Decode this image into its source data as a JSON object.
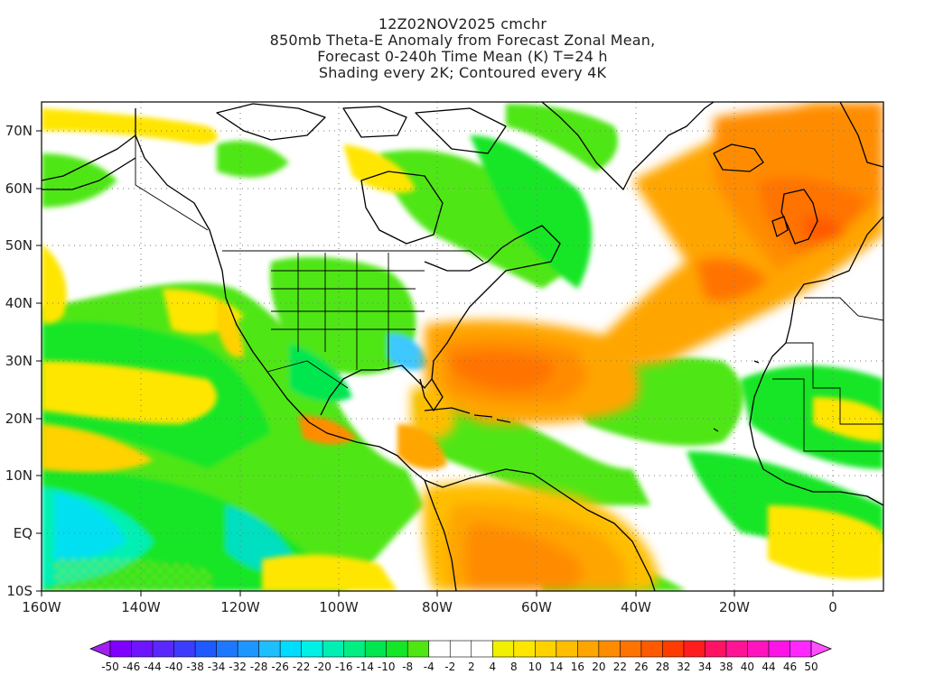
{
  "title": {
    "line1": "12Z02NOV2025 cmchr",
    "line2": "850mb Theta-E Anomaly from Forecast Zonal Mean,",
    "line3": "Forecast 0-240h Time Mean (K) T=24 h",
    "line4": "Shading every 2K; Contoured every 4K"
  },
  "map": {
    "projection": "cylindrical equidistant",
    "lon_range": [
      -160,
      10
    ],
    "lat_range": [
      -10,
      75
    ],
    "lat_ticks": [
      {
        "lat": 70,
        "label": "70N"
      },
      {
        "lat": 60,
        "label": "60N"
      },
      {
        "lat": 50,
        "label": "50N"
      },
      {
        "lat": 40,
        "label": "40N"
      },
      {
        "lat": 30,
        "label": "30N"
      },
      {
        "lat": 20,
        "label": "20N"
      },
      {
        "lat": 10,
        "label": "10N"
      },
      {
        "lat": 0,
        "label": "EQ"
      },
      {
        "lat": -10,
        "label": "10S"
      }
    ],
    "lon_ticks": [
      {
        "lon": -160,
        "label": "160W"
      },
      {
        "lon": -140,
        "label": "140W"
      },
      {
        "lon": -120,
        "label": "120W"
      },
      {
        "lon": -100,
        "label": "100W"
      },
      {
        "lon": -80,
        "label": "80W"
      },
      {
        "lon": -60,
        "label": "60W"
      },
      {
        "lon": -40,
        "label": "40W"
      },
      {
        "lon": -20,
        "label": "20W"
      },
      {
        "lon": 0,
        "label": "0"
      }
    ],
    "grid": "dotted",
    "land_outline_color": "#000000",
    "anomaly_regions": [
      {
        "name": "NE Atlantic warm plume",
        "color": "#ff8a10"
      },
      {
        "name": "Subtropical Atlantic warm core",
        "color": "#ff7a1a"
      },
      {
        "name": "South America warm",
        "color": "#ffa500"
      },
      {
        "name": "Eastern Pacific cool",
        "color": "#18d2ff"
      },
      {
        "name": "SE US cool",
        "color": "#3ec8ff"
      }
    ]
  },
  "colorbar": {
    "labels": [
      "-50",
      "-46",
      "-44",
      "-40",
      "-38",
      "-34",
      "-32",
      "-28",
      "-26",
      "-22",
      "-20",
      "-16",
      "-14",
      "-10",
      "-8",
      "-4",
      "-2",
      "2",
      "4",
      "8",
      "10",
      "14",
      "16",
      "20",
      "22",
      "26",
      "28",
      "32",
      "34",
      "38",
      "40",
      "44",
      "46",
      "50"
    ],
    "colors": [
      "#8000ff",
      "#6e14ff",
      "#5a28ff",
      "#3c3cff",
      "#1e5aff",
      "#1e78ff",
      "#1e96ff",
      "#1ebeff",
      "#00dcff",
      "#00f0e6",
      "#00f0b4",
      "#00ee82",
      "#00e650",
      "#14e628",
      "#50e614",
      "#ffffff",
      "#ffffff",
      "#ffffff",
      "#f0f000",
      "#ffe600",
      "#ffd200",
      "#ffbe00",
      "#ffa500",
      "#ff8c00",
      "#ff7300",
      "#ff5a00",
      "#ff3c00",
      "#ff1e1e",
      "#ff1464",
      "#ff1496",
      "#ff14be",
      "#ff14e6",
      "#ff28ff"
    ],
    "under_color": "#a020f0",
    "over_color": "#ff50ff"
  }
}
